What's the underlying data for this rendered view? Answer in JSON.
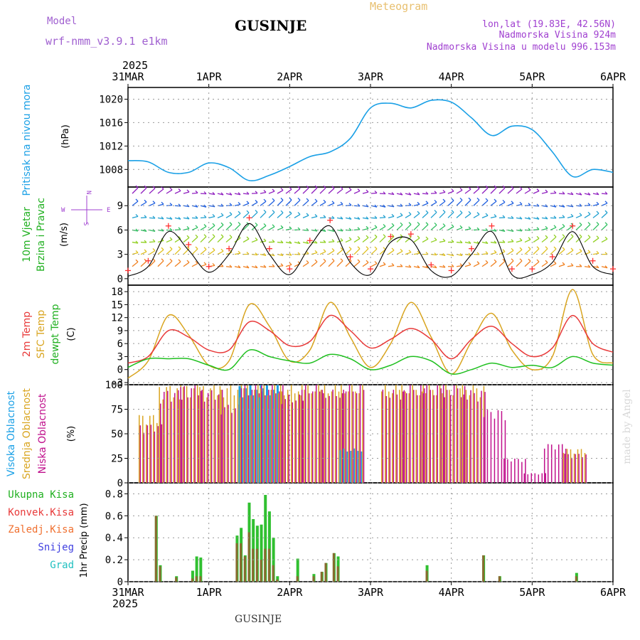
{
  "header": {
    "model_label": "Model",
    "model_name": "wrf-nmm_v3.9.1 e1km",
    "station": "GUSINJE",
    "product": "Meteogram",
    "lonlat": "lon,lat (19.83E, 42.56N)",
    "elevation": "Nadmorska Visina 924m",
    "model_elevation": "Nadmorska Visina u modelu 996.153m"
  },
  "footer": {
    "station": "GUSINJE",
    "watermark": "made by Angel"
  },
  "colors": {
    "pressure": "#1aa0e6",
    "temp2m": "#e83a3a",
    "sfc_temp": "#d9a520",
    "dewpt": "#20c020",
    "wind_line": "#000000",
    "wind_marker": "#ff3030",
    "high_cloud": "#1aa0e6",
    "mid_cloud": "#d9a520",
    "low_cloud": "#c0108c",
    "precip_total": "#30c030",
    "precip_conv": "#8a6a30"
  },
  "time_axis": {
    "year": "2025",
    "tick_labels": [
      "31MAR",
      "1APR",
      "2APR",
      "3APR",
      "4APR",
      "5APR",
      "6APR"
    ]
  },
  "panels": {
    "pressure": {
      "ylabel": "Pritisak na nivou mora",
      "unit": "(hPa)",
      "yticks": [
        "1020",
        "1016",
        "1012",
        "1008"
      ]
    },
    "wind": {
      "ylabel1": "10m Vjetar",
      "ylabel2": "Brzina i Pravac",
      "unit": "(m/s)",
      "yticks": [
        "9",
        "6",
        "3",
        "0"
      ],
      "rose_n": "N",
      "rose_e": "E",
      "rose_w": "W",
      "rose_s": "S"
    },
    "temp": {
      "label_t2m": "2m Temp",
      "label_sfc": "SFC Temp",
      "label_dew": "dewpt Temp",
      "unit": "(C)",
      "yticks": [
        "18",
        "15",
        "12",
        "9",
        "6",
        "3",
        "0",
        "-3"
      ]
    },
    "cloud": {
      "label_high": "Visoka Oblacnost",
      "label_mid": "Srednja Oblacnost",
      "label_low": "Niska Oblacnost",
      "unit": "(%)",
      "yticks": [
        "100",
        "75",
        "50",
        "25",
        "0"
      ]
    },
    "precip": {
      "legend_total": "Ukupna Kisa",
      "legend_conv": "Konvek.Kisa",
      "legend_frozen": "Zaledj.Kisa",
      "legend_snow": "Snijeg",
      "legend_hail": "Grad",
      "ylabel": "1hr Precip (mm)",
      "yticks": [
        "0.8",
        "0.6",
        "0.4",
        "0.2",
        "0"
      ]
    }
  },
  "chart_data": [
    {
      "type": "line",
      "title": "Pritisak na nivou mora",
      "ylabel": "(hPa)",
      "ylim": [
        1005,
        1022
      ],
      "grid": true,
      "x": [
        0,
        0.25,
        0.5,
        0.75,
        1.0,
        1.25,
        1.5,
        1.75,
        2.0,
        2.25,
        2.5,
        2.75,
        3.0,
        3.25,
        3.5,
        3.75,
        4.0,
        4.25,
        4.5,
        4.75,
        5.0,
        5.25,
        5.5,
        5.75,
        6.0
      ],
      "series": [
        {
          "name": "Pritisak na nivou mora",
          "values": [
            1009.5,
            1009.3,
            1007.5,
            1007.5,
            1009.1,
            1008.3,
            1006.1,
            1007.0,
            1008.5,
            1010.2,
            1011.0,
            1013.3,
            1018.5,
            1019.3,
            1018.5,
            1019.8,
            1019.5,
            1016.8,
            1013.8,
            1015.4,
            1014.8,
            1011.0,
            1006.8,
            1008.0,
            1007.5
          ]
        }
      ]
    },
    {
      "type": "line",
      "title": "10m Vjetar Brzina i Pravac",
      "ylabel": "(m/s)",
      "ylim": [
        -0.8,
        11.3
      ],
      "grid": true,
      "x": [
        0,
        0.25,
        0.5,
        0.75,
        1.0,
        1.25,
        1.5,
        1.75,
        2.0,
        2.25,
        2.5,
        2.75,
        3.0,
        3.25,
        3.5,
        3.75,
        4.0,
        4.25,
        4.5,
        4.75,
        5.0,
        5.25,
        5.5,
        5.75,
        6.0
      ],
      "series": [
        {
          "name": "10m Vjetar",
          "values": [
            0.3,
            1.5,
            5.8,
            3.5,
            0.8,
            3.0,
            6.8,
            3.0,
            0.5,
            4.0,
            6.5,
            2.0,
            0.5,
            4.5,
            4.8,
            1.0,
            0.3,
            3.0,
            5.8,
            0.5,
            0.5,
            2.0,
            5.8,
            1.5,
            0.5
          ]
        }
      ]
    },
    {
      "type": "line",
      "title": "2m Temp / SFC Temp / dewpt Temp",
      "ylabel": "(C)",
      "ylim": [
        -3.5,
        19.5
      ],
      "grid": true,
      "x": [
        0,
        0.25,
        0.5,
        0.75,
        1.0,
        1.25,
        1.5,
        1.75,
        2.0,
        2.25,
        2.5,
        2.75,
        3.0,
        3.25,
        3.5,
        3.75,
        4.0,
        4.25,
        4.5,
        4.75,
        5.0,
        5.25,
        5.5,
        5.75,
        6.0
      ],
      "series": [
        {
          "name": "2m Temp",
          "values": [
            1.5,
            3.0,
            9.0,
            7.5,
            4.5,
            4.5,
            11.0,
            9.0,
            5.5,
            6.5,
            12.5,
            9.0,
            5.0,
            7.0,
            9.5,
            7.0,
            2.5,
            7.0,
            10.0,
            6.0,
            3.0,
            5.0,
            12.5,
            6.0,
            4.0
          ]
        },
        {
          "name": "SFC Temp",
          "values": [
            -2.0,
            2.0,
            12.5,
            8.0,
            1.0,
            2.0,
            15.0,
            10.0,
            2.0,
            4.5,
            15.5,
            7.5,
            0.5,
            6.0,
            15.5,
            7.5,
            -1.0,
            6.5,
            13.0,
            4.5,
            0.0,
            3.0,
            18.5,
            3.5,
            1.5
          ]
        },
        {
          "name": "dewpt Temp",
          "values": [
            0.5,
            2.5,
            2.5,
            2.5,
            1.0,
            0.0,
            4.5,
            3.0,
            2.0,
            1.5,
            3.5,
            2.5,
            0.0,
            1.0,
            3.0,
            2.0,
            -1.0,
            0.0,
            1.5,
            0.5,
            1.0,
            0.5,
            3.0,
            1.5,
            1.0
          ]
        }
      ]
    },
    {
      "type": "bar",
      "title": "Oblacnost",
      "ylabel": "(%)",
      "ylim": [
        0,
        100
      ],
      "grid": true,
      "x": [
        0.25,
        0.5,
        0.75,
        1.0,
        1.25,
        1.5,
        1.75,
        2.0,
        2.25,
        2.5,
        2.75,
        3.0,
        3.25,
        3.5,
        3.75,
        4.0,
        4.25,
        4.5,
        4.75,
        5.0,
        5.25,
        5.5,
        5.75
      ],
      "series": [
        {
          "name": "Visoka Oblacnost",
          "values": [
            0,
            0,
            0,
            0,
            0,
            100,
            100,
            0,
            0,
            0,
            35,
            0,
            0,
            0,
            0,
            0,
            0,
            0,
            0,
            0,
            0,
            0,
            0
          ]
        },
        {
          "name": "Srednja Oblacnost",
          "values": [
            70,
            100,
            100,
            100,
            100,
            100,
            100,
            100,
            100,
            100,
            100,
            0,
            100,
            100,
            100,
            100,
            100,
            0,
            0,
            0,
            0,
            35,
            0
          ]
        },
        {
          "name": "Niska Oblacnost",
          "values": [
            60,
            95,
            100,
            95,
            80,
            100,
            100,
            90,
            100,
            95,
            100,
            0,
            95,
            100,
            100,
            100,
            95,
            75,
            25,
            10,
            40,
            30,
            0
          ]
        }
      ]
    },
    {
      "type": "bar",
      "title": "1hr Precip",
      "ylabel": "(mm)",
      "ylim": [
        0,
        0.9
      ],
      "grid": true,
      "x": [
        0.35,
        0.4,
        0.6,
        0.8,
        0.85,
        0.9,
        1.35,
        1.4,
        1.45,
        1.5,
        1.55,
        1.6,
        1.65,
        1.7,
        1.75,
        1.8,
        1.85,
        2.1,
        2.3,
        2.4,
        2.45,
        2.55,
        2.6,
        3.7,
        4.4,
        4.6,
        5.55
      ],
      "series": [
        {
          "name": "Ukupna Kisa",
          "values": [
            0.6,
            0.15,
            0.05,
            0.1,
            0.23,
            0.22,
            0.42,
            0.49,
            0.24,
            0.72,
            0.57,
            0.51,
            0.52,
            0.79,
            0.64,
            0.4,
            0.05,
            0.21,
            0.07,
            0.09,
            0.17,
            0.26,
            0.23,
            0.15,
            0.24,
            0.05,
            0.08
          ]
        },
        {
          "name": "Konvek.Kisa",
          "values": [
            0.6,
            0.14,
            0.04,
            0.03,
            0.05,
            0.05,
            0.35,
            0.35,
            0.23,
            0.45,
            0.3,
            0.3,
            0.2,
            0.3,
            0.3,
            0.15,
            0.02,
            0.05,
            0.05,
            0.09,
            0.17,
            0.26,
            0.14,
            0.1,
            0.24,
            0.05,
            0.05
          ]
        }
      ]
    }
  ]
}
